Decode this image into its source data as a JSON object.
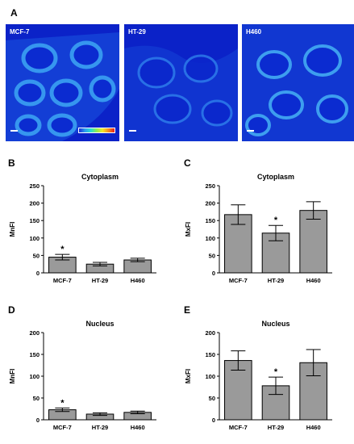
{
  "panel_letters": {
    "a": "A",
    "b": "B",
    "c": "C",
    "d": "D",
    "e": "E"
  },
  "micrographs": [
    {
      "label": "MCF-7"
    },
    {
      "label": "HT-29"
    },
    {
      "label": "H460"
    }
  ],
  "colors": {
    "bar": "#9a9a9a",
    "micro_bg": "#0b22c8"
  },
  "chart_data": [
    {
      "type": "bar",
      "panel": "B",
      "title": "Cytoplasm",
      "xlabel": "",
      "ylabel": "MnFI",
      "categories": [
        "MCF-7",
        "HT-29",
        "H460"
      ],
      "values": [
        45,
        25,
        37
      ],
      "errors": [
        8,
        5,
        5
      ],
      "significance": [
        "*",
        "",
        ""
      ],
      "ylim": [
        0,
        250
      ],
      "yticks": [
        0,
        50,
        100,
        150,
        200,
        250
      ]
    },
    {
      "type": "bar",
      "panel": "C",
      "title": "Cytoplasm",
      "xlabel": "",
      "ylabel": "MxFI",
      "categories": [
        "MCF-7",
        "HT-29",
        "H460"
      ],
      "values": [
        167,
        114,
        179
      ],
      "errors": [
        28,
        22,
        25
      ],
      "significance": [
        "",
        "*",
        ""
      ],
      "ylim": [
        0,
        250
      ],
      "yticks": [
        0,
        50,
        100,
        150,
        200,
        250
      ]
    },
    {
      "type": "bar",
      "panel": "D",
      "title": "Nucleus",
      "xlabel": "",
      "ylabel": "MnFI",
      "categories": [
        "MCF-7",
        "HT-29",
        "H460"
      ],
      "values": [
        23,
        13,
        17
      ],
      "errors": [
        4,
        3,
        3
      ],
      "significance": [
        "*",
        "",
        ""
      ],
      "ylim": [
        0,
        200
      ],
      "yticks": [
        0,
        50,
        100,
        150,
        200
      ]
    },
    {
      "type": "bar",
      "panel": "E",
      "title": "Nucleus",
      "xlabel": "",
      "ylabel": "MxFI",
      "categories": [
        "MCF-7",
        "HT-29",
        "H460"
      ],
      "values": [
        136,
        78,
        131
      ],
      "errors": [
        22,
        20,
        30
      ],
      "significance": [
        "",
        "*",
        ""
      ],
      "ylim": [
        0,
        200
      ],
      "yticks": [
        0,
        50,
        100,
        150,
        200
      ]
    }
  ]
}
